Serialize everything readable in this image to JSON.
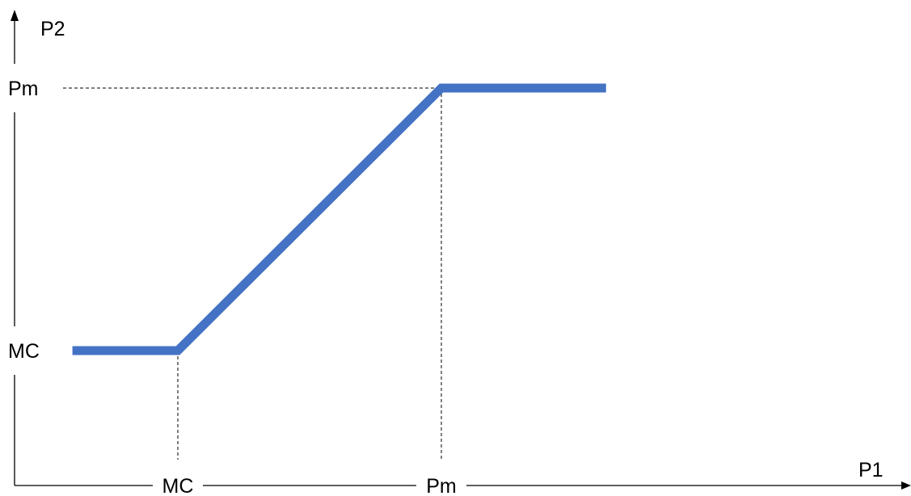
{
  "chart_data": {
    "type": "line",
    "xlabel": "P1",
    "ylabel": "P2",
    "x_ticks": [
      {
        "label": "MC",
        "value": 1
      },
      {
        "label": "Pm",
        "value": 3
      }
    ],
    "y_ticks": [
      {
        "label": "MC",
        "value": 1
      },
      {
        "label": "Pm",
        "value": 3
      }
    ],
    "series": [
      {
        "points": [
          {
            "x": 0.2,
            "y": 1
          },
          {
            "x": 1,
            "y": 1
          },
          {
            "x": 3,
            "y": 3
          },
          {
            "x": 4.25,
            "y": 3
          }
        ],
        "color": "#4472C4"
      }
    ],
    "guides": [
      {
        "from": "y-axis",
        "x": 3,
        "y": 3
      },
      {
        "from": "x-axis",
        "x": 1,
        "y": 1
      },
      {
        "from": "x-axis",
        "x": 3,
        "y": 3
      }
    ],
    "grid": false,
    "legend": "none",
    "axis_color": "#000000"
  }
}
